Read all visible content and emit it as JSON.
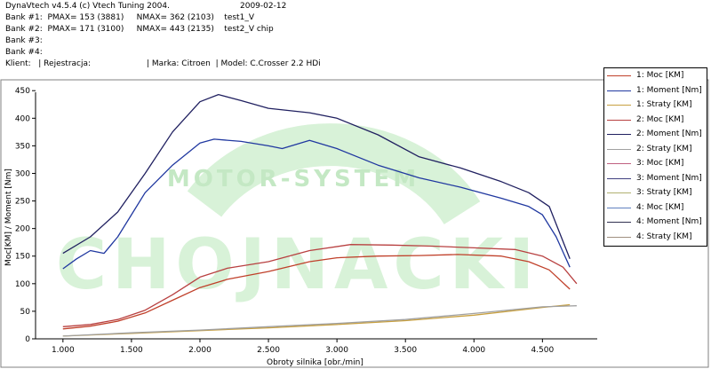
{
  "header": {
    "line1_app": "DynaVtech v4.5.4 (c) Vtech Tuning 2004.",
    "line1_date": "2009-02-12",
    "bank1": "Bank #1:  PMAX= 153 (3881)     NMAX= 362 (2103)    test1_V",
    "bank2": "Bank #2:  PMAX= 171 (3100)     NMAX= 443 (2135)    test2_V chip",
    "bank3": "Bank #3:",
    "bank4": "Bank #4:",
    "client_line": "Klient:   | Rejestracja:                      | Marka: Citroen  | Model: C.Crosser 2.2 HDi"
  },
  "watermark": {
    "big_text": "CHOJNACKI",
    "arc_text": "MOTOR-SYSTEM",
    "color": "#d2f0d2"
  },
  "legend": [
    {
      "label": "1:  Moc [KM]",
      "color": "#c0402a"
    },
    {
      "label": "1:  Moment [Nm]",
      "color": "#2038a0"
    },
    {
      "label": "1:  Straty [KM]",
      "color": "#c8a040"
    },
    {
      "label": "2:  Moc [KM]",
      "color": "#b84040"
    },
    {
      "label": "2:  Moment [Nm]",
      "color": "#202060"
    },
    {
      "label": "2:  Straty [KM]",
      "color": "#a0a0a0"
    },
    {
      "label": "3:  Moc [KM]",
      "color": "#c06080"
    },
    {
      "label": "3:  Moment [Nm]",
      "color": "#404080"
    },
    {
      "label": "3:  Straty [KM]",
      "color": "#b0b070"
    },
    {
      "label": "4:  Moc [KM]",
      "color": "#6080c0"
    },
    {
      "label": "4:  Moment [Nm]",
      "color": "#303050"
    },
    {
      "label": "4:  Straty [KM]",
      "color": "#a09080"
    }
  ],
  "chart_data": {
    "type": "line",
    "xlabel": "Obroty silnika [obr./min]",
    "ylabel": "Moc[KM] / Moment [Nm]",
    "xlim": [
      800,
      4900
    ],
    "ylim": [
      0,
      460
    ],
    "x_ticks": [
      1000,
      1500,
      2000,
      2500,
      3000,
      3500,
      4000,
      4500
    ],
    "x_tick_labels": [
      "1.000",
      "1.500",
      "2.000",
      "2.500",
      "3.000",
      "3.500",
      "4.000",
      "4.500"
    ],
    "y_ticks": [
      0,
      50,
      100,
      150,
      200,
      250,
      300,
      350,
      400,
      450
    ],
    "grid": false,
    "legend_position": "right",
    "series": [
      {
        "name": "1: Moc [KM]",
        "color": "#c0402a",
        "x": [
          1000,
          1200,
          1400,
          1600,
          1800,
          2000,
          2200,
          2500,
          2800,
          3000,
          3300,
          3600,
          3881,
          4200,
          4400,
          4550,
          4700
        ],
        "y": [
          18,
          23,
          32,
          47,
          70,
          93,
          108,
          122,
          140,
          147,
          150,
          151,
          153,
          150,
          140,
          125,
          90
        ]
      },
      {
        "name": "1: Moment [Nm]",
        "color": "#2038a0",
        "x": [
          1000,
          1100,
          1200,
          1300,
          1400,
          1500,
          1600,
          1800,
          2000,
          2103,
          2300,
          2500,
          2600,
          2800,
          3000,
          3300,
          3600,
          3900,
          4200,
          4400,
          4500,
          4600,
          4700
        ],
        "y": [
          127,
          145,
          160,
          155,
          185,
          225,
          265,
          315,
          355,
          362,
          358,
          350,
          345,
          360,
          345,
          315,
          292,
          275,
          255,
          240,
          225,
          185,
          130
        ]
      },
      {
        "name": "1: Straty [KM]",
        "color": "#c8a040",
        "x": [
          1000,
          1500,
          2000,
          2500,
          3000,
          3500,
          4000,
          4500,
          4700
        ],
        "y": [
          5,
          10,
          15,
          20,
          26,
          33,
          43,
          57,
          62
        ]
      },
      {
        "name": "2: Moc [KM]",
        "color": "#b84040",
        "x": [
          1000,
          1200,
          1400,
          1600,
          1800,
          2000,
          2200,
          2500,
          2800,
          3100,
          3400,
          3700,
          4000,
          4300,
          4500,
          4650,
          4750
        ],
        "y": [
          22,
          26,
          35,
          52,
          80,
          112,
          128,
          140,
          160,
          171,
          170,
          168,
          165,
          162,
          150,
          130,
          100
        ]
      },
      {
        "name": "2: Moment [Nm]",
        "color": "#202060",
        "x": [
          1000,
          1200,
          1400,
          1600,
          1800,
          2000,
          2135,
          2300,
          2500,
          2800,
          3000,
          3300,
          3600,
          3900,
          4200,
          4400,
          4550,
          4700
        ],
        "y": [
          155,
          185,
          230,
          300,
          375,
          430,
          443,
          432,
          418,
          410,
          400,
          370,
          330,
          310,
          285,
          265,
          240,
          145
        ]
      },
      {
        "name": "2: Straty [KM]",
        "color": "#a0a0a0",
        "x": [
          1000,
          1500,
          2000,
          2500,
          3000,
          3500,
          4000,
          4500,
          4750
        ],
        "y": [
          5,
          11,
          16,
          22,
          28,
          35,
          46,
          58,
          60
        ]
      }
    ]
  }
}
